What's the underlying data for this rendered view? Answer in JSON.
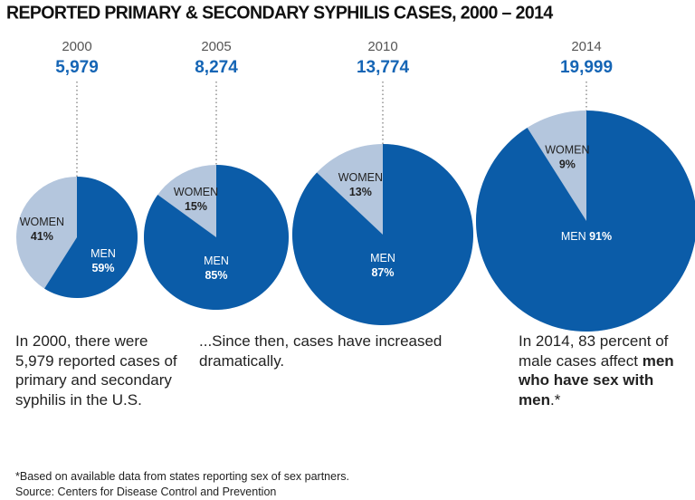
{
  "chart_data": {
    "type": "pie",
    "title": "REPORTED PRIMARY & SECONDARY SYPHILIS CASES, 2000 – 2014",
    "pies": [
      {
        "year": "2000",
        "total": 5979,
        "total_label": "5,979",
        "slices": [
          {
            "name": "MEN",
            "value": 59,
            "label": "59%"
          },
          {
            "name": "WOMEN",
            "value": 41,
            "label": "41%"
          }
        ]
      },
      {
        "year": "2005",
        "total": 8274,
        "total_label": "8,274",
        "slices": [
          {
            "name": "MEN",
            "value": 85,
            "label": "85%"
          },
          {
            "name": "WOMEN",
            "value": 15,
            "label": "15%"
          }
        ]
      },
      {
        "year": "2010",
        "total": 13774,
        "total_label": "13,774",
        "slices": [
          {
            "name": "MEN",
            "value": 87,
            "label": "87%"
          },
          {
            "name": "WOMEN",
            "value": 13,
            "label": "13%"
          }
        ]
      },
      {
        "year": "2014",
        "total": 19999,
        "total_label": "19,999",
        "slices": [
          {
            "name": "MEN",
            "value": 91,
            "label": "91%"
          },
          {
            "name": "WOMEN",
            "value": 9,
            "label": "9%"
          }
        ]
      }
    ],
    "colors": {
      "men": "#0b5ca8",
      "women": "#b4c6dd",
      "total": "#1565b5"
    }
  },
  "notes": {
    "n1": "In 2000, there were 5,979 reported cases of primary and secondary syphilis in the U.S.",
    "n2": "...Since then, cases have increased dramatically.",
    "n3a": "In 2014, 83 percent of male cases affect ",
    "n3b": "men who have sex with men",
    "n3c": ".*"
  },
  "footnote": "*Based on available data from states reporting sex of sex partners.",
  "source": "Source: Centers for Disease Control and Prevention"
}
